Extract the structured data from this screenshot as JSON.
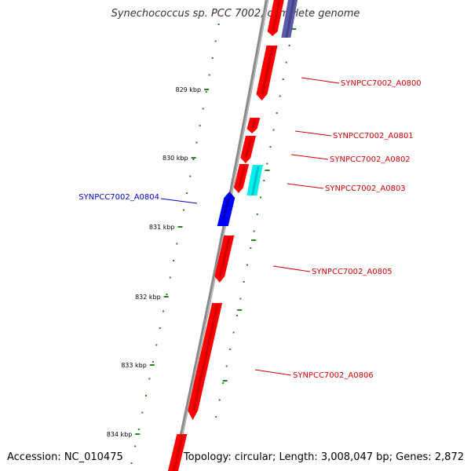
{
  "title": "Synechococcus sp. PCC 7002, complete genome",
  "footer": {
    "accession": "Accession: NC_010475",
    "summary": "Topology: circular; Length: 3,008,047 bp; Genes: 2,872"
  },
  "colors": {
    "backbone": "#8a8a8a",
    "ticks": "#1f8a1f",
    "forward_gene": "#ff0000",
    "reverse_gene": "#0000ff",
    "cyan_feature": "#00f0f0",
    "purple_feature": "#5a5aa8",
    "forward_label": "#d40000",
    "reverse_label": "#0000cc"
  },
  "scale_labels": [
    "829 kbp",
    "830 kbp",
    "831 kbp",
    "832 kbp",
    "833 kbp",
    "834 kbp"
  ],
  "genes": [
    {
      "label": "SYNPCC7002_A0800",
      "strand": "forward"
    },
    {
      "label": "SYNPCC7002_A0801",
      "strand": "forward"
    },
    {
      "label": "SYNPCC7002_A0802",
      "strand": "forward"
    },
    {
      "label": "SYNPCC7002_A0803",
      "strand": "forward"
    },
    {
      "label": "SYNPCC7002_A0804",
      "strand": "reverse"
    },
    {
      "label": "SYNPCC7002_A0805",
      "strand": "forward"
    },
    {
      "label": "SYNPCC7002_A0806",
      "strand": "forward"
    }
  ]
}
